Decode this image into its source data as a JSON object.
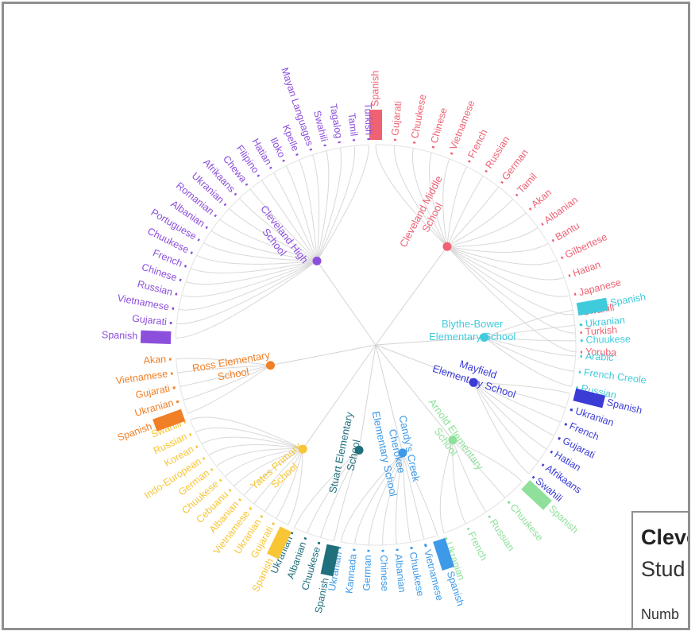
{
  "chart_data": {
    "type": "radial-tree",
    "title": "",
    "schools": [
      {
        "name": "Cleveland Middle School",
        "color": "#ee6274",
        "label_lines": [
          "Cleveland Middle",
          "School"
        ],
        "languages": [
          {
            "name": "Spanish",
            "value": 180
          },
          {
            "name": "Gujarati",
            "value": 2
          },
          {
            "name": "Chuukese",
            "value": 2
          },
          {
            "name": "Chinese",
            "value": 2
          },
          {
            "name": "Vietnamese",
            "value": 2
          },
          {
            "name": "French",
            "value": 2
          },
          {
            "name": "Russian",
            "value": 1
          },
          {
            "name": "German",
            "value": 1
          },
          {
            "name": "Tamil",
            "value": 1
          },
          {
            "name": "Akan",
            "value": 1
          },
          {
            "name": "Albanian",
            "value": 1
          },
          {
            "name": "Bantu",
            "value": 1
          },
          {
            "name": "Gilbertese",
            "value": 1
          },
          {
            "name": "Hatian",
            "value": 1
          },
          {
            "name": "Japanese",
            "value": 1
          },
          {
            "name": "Swahili",
            "value": 1
          },
          {
            "name": "Turkish",
            "value": 1
          },
          {
            "name": "Yoruba",
            "value": 1
          }
        ]
      },
      {
        "name": "Blythe-Bower Elementary School",
        "color": "#3fcbdc",
        "label_lines": [
          "Blythe-Bower",
          "Elementary School"
        ],
        "languages": [
          {
            "name": "Spanish",
            "value": 110
          },
          {
            "name": "Ukranian",
            "value": 4
          },
          {
            "name": "Chuukese",
            "value": 2
          },
          {
            "name": "Arabic",
            "value": 1
          },
          {
            "name": "French Creole",
            "value": 1
          },
          {
            "name": "Russian",
            "value": 1
          }
        ]
      },
      {
        "name": "Mayfield Elementary School",
        "color": "#3b3bd6",
        "label_lines": [
          "Mayfield",
          "Elementary School"
        ],
        "languages": [
          {
            "name": "Spanish",
            "value": 95
          },
          {
            "name": "Ukranian",
            "value": 3
          },
          {
            "name": "French",
            "value": 2
          },
          {
            "name": "Gujarati",
            "value": 2
          },
          {
            "name": "Hatian",
            "value": 1
          },
          {
            "name": "Afrikaans",
            "value": 1
          },
          {
            "name": "Swahili",
            "value": 1
          }
        ]
      },
      {
        "name": "Arnold Elementary School",
        "color": "#8ee09a",
        "label_lines": [
          "Arnold Elementary",
          "School"
        ],
        "languages": [
          {
            "name": "Spanish",
            "value": 95
          },
          {
            "name": "Chuukese",
            "value": 3
          },
          {
            "name": "Russian",
            "value": 2
          },
          {
            "name": "French",
            "value": 1
          },
          {
            "name": "Ukranian",
            "value": 2
          }
        ]
      },
      {
        "name": "Candy's Creek Cherokee Elementary School",
        "color": "#3d9ae8",
        "label_lines": [
          "Candy's Creek",
          "Cherokee",
          "Elementary School"
        ],
        "languages": [
          {
            "name": "Spanish",
            "value": 80
          },
          {
            "name": "Vietnamese",
            "value": 4
          },
          {
            "name": "Chuukese",
            "value": 2
          },
          {
            "name": "Albanian",
            "value": 1
          },
          {
            "name": "Chinese",
            "value": 1
          },
          {
            "name": "German",
            "value": 1
          },
          {
            "name": "Kannada",
            "value": 1
          },
          {
            "name": "Ukranian",
            "value": 1
          }
        ]
      },
      {
        "name": "Stuart Elementary School",
        "color": "#1f6f7c",
        "label_lines": [
          "Stuart Elementary",
          "School"
        ],
        "languages": [
          {
            "name": "Spanish",
            "value": 95
          },
          {
            "name": "Chuukese",
            "value": 2
          },
          {
            "name": "Albanian",
            "value": 1
          },
          {
            "name": "Ukranian",
            "value": 1
          }
        ]
      },
      {
        "name": "Yates Primary School",
        "color": "#f8c534",
        "label_lines": [
          "Yates Primary",
          "School"
        ],
        "languages": [
          {
            "name": "Spanish",
            "value": 90
          },
          {
            "name": "Gujarati",
            "value": 2
          },
          {
            "name": "Ukranian",
            "value": 2
          },
          {
            "name": "Vietnamese",
            "value": 2
          },
          {
            "name": "Albanian",
            "value": 1
          },
          {
            "name": "Cebuanu",
            "value": 1
          },
          {
            "name": "Chuukese",
            "value": 1
          },
          {
            "name": "German",
            "value": 1
          },
          {
            "name": "Indo-European",
            "value": 1
          },
          {
            "name": "Korean",
            "value": 1
          },
          {
            "name": "Russian",
            "value": 1
          },
          {
            "name": "Swahili",
            "value": 1
          }
        ]
      },
      {
        "name": "Ross Elementary School",
        "color": "#f07f25",
        "label_lines": [
          "Ross Elementary",
          "School"
        ],
        "languages": [
          {
            "name": "Spanish",
            "value": 70
          },
          {
            "name": "Ukranian",
            "value": 2
          },
          {
            "name": "Gujarati",
            "value": 2
          },
          {
            "name": "Vietnamese",
            "value": 1
          },
          {
            "name": "Akan",
            "value": 1
          }
        ]
      },
      {
        "name": "Cleveland High School",
        "color": "#8c4fdc",
        "label_lines": [
          "Cleveland High",
          "School"
        ],
        "languages": [
          {
            "name": "Spanish",
            "value": 200
          },
          {
            "name": "Gujarati",
            "value": 4
          },
          {
            "name": "Vietnamese",
            "value": 3
          },
          {
            "name": "Russian",
            "value": 2
          },
          {
            "name": "Chinese",
            "value": 2
          },
          {
            "name": "French",
            "value": 2
          },
          {
            "name": "Chuukese",
            "value": 2
          },
          {
            "name": "Portuguese",
            "value": 1
          },
          {
            "name": "Albanian",
            "value": 1
          },
          {
            "name": "Romanian",
            "value": 1
          },
          {
            "name": "Ukranian",
            "value": 1
          },
          {
            "name": "Afrikaans",
            "value": 1
          },
          {
            "name": "Chewa",
            "value": 1
          },
          {
            "name": "Filipino",
            "value": 1
          },
          {
            "name": "Hatian",
            "value": 1
          },
          {
            "name": "Iloko",
            "value": 1
          },
          {
            "name": "Kpelle",
            "value": 1
          },
          {
            "name": "Mayan Languages",
            "value": 1
          },
          {
            "name": "Swahili",
            "value": 1
          },
          {
            "name": "Tagalog",
            "value": 1
          },
          {
            "name": "Tamil",
            "value": 1
          },
          {
            "name": "Turkish",
            "value": 1
          }
        ]
      }
    ],
    "legend": "none"
  },
  "tooltip": {
    "title": "Cleve",
    "subtitle": "Stud",
    "number_label": "Numb"
  }
}
